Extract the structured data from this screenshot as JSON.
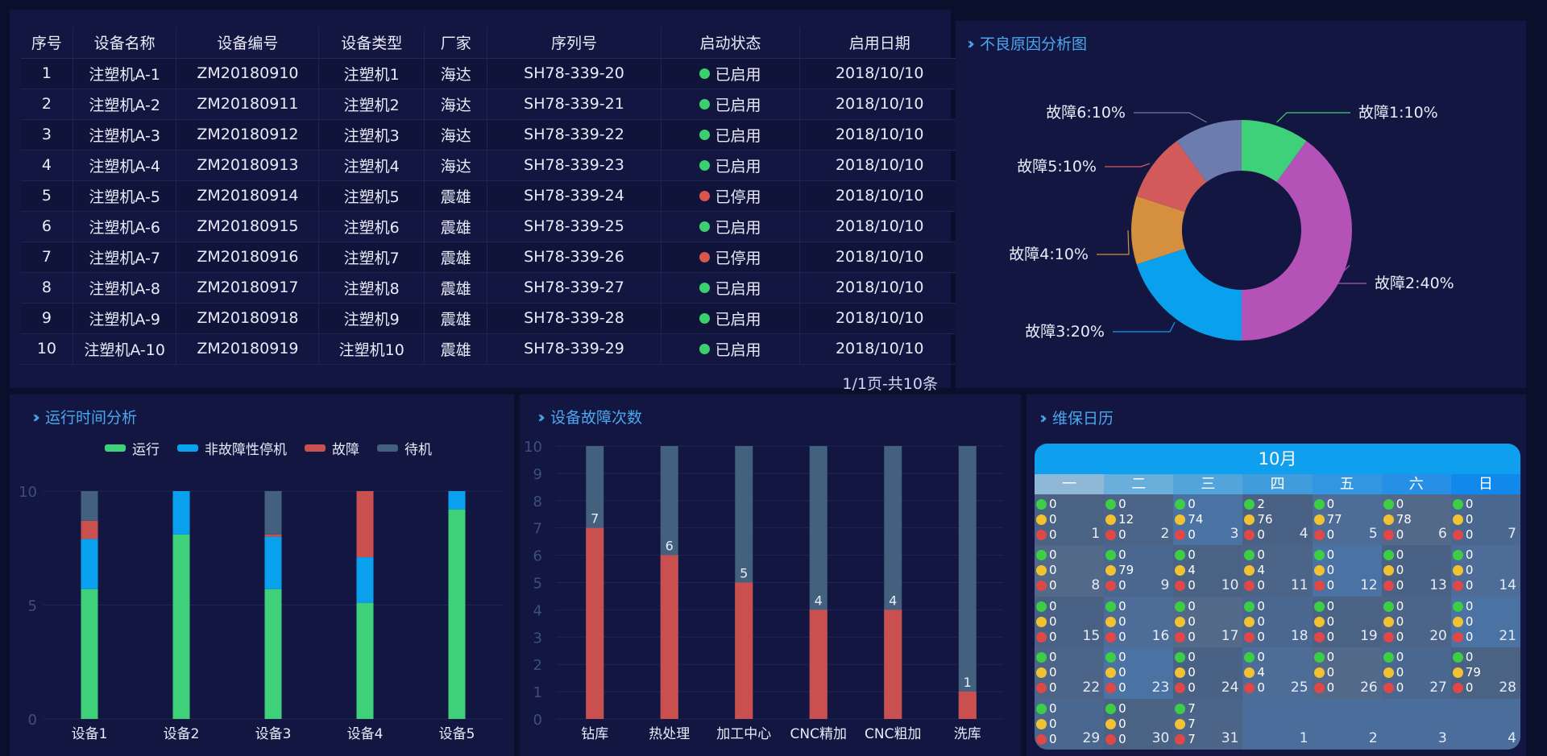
{
  "table": {
    "headers": [
      "序号",
      "设备名称",
      "设备编号",
      "设备类型",
      "厂家",
      "序列号",
      "启动状态",
      "启用日期"
    ],
    "rows": [
      [
        "1",
        "注塑机A-1",
        "ZM20180910",
        "注塑机1",
        "海达",
        "SH78-339-20",
        "已启用",
        "2018/10/10"
      ],
      [
        "2",
        "注塑机A-2",
        "ZM20180911",
        "注塑机2",
        "海达",
        "SH78-339-21",
        "已启用",
        "2018/10/10"
      ],
      [
        "3",
        "注塑机A-3",
        "ZM20180912",
        "注塑机3",
        "海达",
        "SH78-339-22",
        "已启用",
        "2018/10/10"
      ],
      [
        "4",
        "注塑机A-4",
        "ZM20180913",
        "注塑机4",
        "海达",
        "SH78-339-23",
        "已启用",
        "2018/10/10"
      ],
      [
        "5",
        "注塑机A-5",
        "ZM20180914",
        "注塑机5",
        "震雄",
        "SH78-339-24",
        "已停用",
        "2018/10/10"
      ],
      [
        "6",
        "注塑机A-6",
        "ZM20180915",
        "注塑机6",
        "震雄",
        "SH78-339-25",
        "已启用",
        "2018/10/10"
      ],
      [
        "7",
        "注塑机A-7",
        "ZM20180916",
        "注塑机7",
        "震雄",
        "SH78-339-26",
        "已停用",
        "2018/10/10"
      ],
      [
        "8",
        "注塑机A-8",
        "ZM20180917",
        "注塑机8",
        "震雄",
        "SH78-339-27",
        "已启用",
        "2018/10/10"
      ],
      [
        "9",
        "注塑机A-9",
        "ZM20180918",
        "注塑机9",
        "震雄",
        "SH78-339-28",
        "已启用",
        "2018/10/10"
      ],
      [
        "10",
        "注塑机A-10",
        "ZM20180919",
        "注塑机10",
        "震雄",
        "SH78-339-29",
        "已启用",
        "2018/10/10"
      ]
    ],
    "status_colors": {
      "已启用": "#3ccf6f",
      "已停用": "#d9554e"
    },
    "pager": "1/1页-共10条"
  },
  "titles": {
    "pie": "不良原因分析图",
    "runtime": "运行时间分析",
    "faults": "设备故障次数",
    "calendar": "维保日历"
  },
  "chart_data": [
    {
      "type": "pie",
      "title": "不良原因分析图",
      "labels": [
        "故障1:10%",
        "故障2:40%",
        "故障3:20%",
        "故障4:10%",
        "故障5:10%",
        "故障6:10%"
      ],
      "values": [
        10,
        40,
        20,
        10,
        10,
        10
      ],
      "colors": [
        "#3fd07a",
        "#b452b8",
        "#09a0ee",
        "#d4903e",
        "#d35a5b",
        "#6d7cae"
      ]
    },
    {
      "type": "bar",
      "title": "运行时间分析",
      "stacked": true,
      "categories": [
        "设备1",
        "设备2",
        "设备3",
        "设备4",
        "设备5"
      ],
      "ylim": [
        0,
        10
      ],
      "yticks": [
        0,
        5,
        10
      ],
      "legend_position": "top",
      "series": [
        {
          "name": "运行",
          "color": "#3fd07a",
          "values": [
            5.7,
            8.1,
            5.7,
            5.1,
            9.2
          ]
        },
        {
          "name": "非故障性停机",
          "color": "#09a0ee",
          "values": [
            2.2,
            1.9,
            2.3,
            2.0,
            0.8
          ]
        },
        {
          "name": "故障",
          "color": "#c9504f",
          "values": [
            0.8,
            0,
            0.1,
            2.9,
            0
          ]
        },
        {
          "name": "待机",
          "color": "#43607e",
          "values": [
            1.3,
            0,
            1.9,
            0,
            0
          ]
        }
      ]
    },
    {
      "type": "bar",
      "title": "设备故障次数",
      "categories": [
        "钻库",
        "热处理",
        "加工中心",
        "CNC精加",
        "CNC粗加",
        "洗库"
      ],
      "values": [
        7,
        6,
        5,
        4,
        4,
        1
      ],
      "ylim": [
        0,
        10
      ],
      "yticks": [
        0,
        1,
        2,
        3,
        4,
        5,
        6,
        7,
        8,
        9,
        10
      ],
      "bar_color": "#c9504f",
      "background_color": "#43607e"
    }
  ],
  "calendar": {
    "month": "10月",
    "weekdays": [
      "一",
      "二",
      "三",
      "四",
      "五",
      "六",
      "日"
    ],
    "weekday_colors": [
      "#8fb8d6",
      "#6aaedc",
      "#54a4dc",
      "#419cdc",
      "#3396e0",
      "#2590e6",
      "#1088ec"
    ],
    "face_colors": {
      "good": "#3ccf46",
      "neutral": "#f2c232",
      "bad": "#e04848"
    },
    "cell_colors": [
      "#4a6283",
      "#52698a",
      "#496184",
      "#4b6487",
      "#4a6790",
      "#4d6d98",
      "#4a72a2"
    ],
    "days": [
      {
        "day": "1",
        "good": "0",
        "neutral": "0",
        "bad": "0"
      },
      {
        "day": "2",
        "good": "0",
        "neutral": "12",
        "bad": "0"
      },
      {
        "day": "3",
        "good": "0",
        "neutral": "74",
        "bad": "0"
      },
      {
        "day": "4",
        "good": "2",
        "neutral": "76",
        "bad": "0"
      },
      {
        "day": "5",
        "good": "0",
        "neutral": "77",
        "bad": "0"
      },
      {
        "day": "6",
        "good": "0",
        "neutral": "78",
        "bad": "0"
      },
      {
        "day": "7",
        "good": "0",
        "neutral": "0",
        "bad": "0"
      },
      {
        "day": "8",
        "good": "0",
        "neutral": "0",
        "bad": "0"
      },
      {
        "day": "9",
        "good": "0",
        "neutral": "79",
        "bad": "0"
      },
      {
        "day": "10",
        "good": "0",
        "neutral": "4",
        "bad": "0"
      },
      {
        "day": "11",
        "good": "0",
        "neutral": "4",
        "bad": "0"
      },
      {
        "day": "12",
        "good": "0",
        "neutral": "0",
        "bad": "0"
      },
      {
        "day": "13",
        "good": "0",
        "neutral": "0",
        "bad": "0"
      },
      {
        "day": "14",
        "good": "0",
        "neutral": "0",
        "bad": "0"
      },
      {
        "day": "15",
        "good": "0",
        "neutral": "0",
        "bad": "0"
      },
      {
        "day": "16",
        "good": "0",
        "neutral": "0",
        "bad": "0"
      },
      {
        "day": "17",
        "good": "0",
        "neutral": "0",
        "bad": "0"
      },
      {
        "day": "18",
        "good": "0",
        "neutral": "0",
        "bad": "0"
      },
      {
        "day": "19",
        "good": "0",
        "neutral": "0",
        "bad": "0"
      },
      {
        "day": "20",
        "good": "0",
        "neutral": "0",
        "bad": "0"
      },
      {
        "day": "21",
        "good": "0",
        "neutral": "0",
        "bad": "0"
      },
      {
        "day": "22",
        "good": "0",
        "neutral": "0",
        "bad": "0"
      },
      {
        "day": "23",
        "good": "0",
        "neutral": "0",
        "bad": "0"
      },
      {
        "day": "24",
        "good": "0",
        "neutral": "0",
        "bad": "0"
      },
      {
        "day": "25",
        "good": "0",
        "neutral": "4",
        "bad": "0"
      },
      {
        "day": "26",
        "good": "0",
        "neutral": "0",
        "bad": "0"
      },
      {
        "day": "27",
        "good": "0",
        "neutral": "0",
        "bad": "0"
      },
      {
        "day": "28",
        "good": "0",
        "neutral": "79",
        "bad": "0"
      },
      {
        "day": "29",
        "good": "0",
        "neutral": "0",
        "bad": "0"
      },
      {
        "day": "30",
        "good": "0",
        "neutral": "0",
        "bad": "0"
      },
      {
        "day": "31",
        "good": "7",
        "neutral": "7",
        "bad": "7"
      },
      {
        "day": "1",
        "empty": true
      },
      {
        "day": "2",
        "empty": true
      },
      {
        "day": "3",
        "empty": true
      },
      {
        "day": "4",
        "empty": true
      }
    ]
  }
}
